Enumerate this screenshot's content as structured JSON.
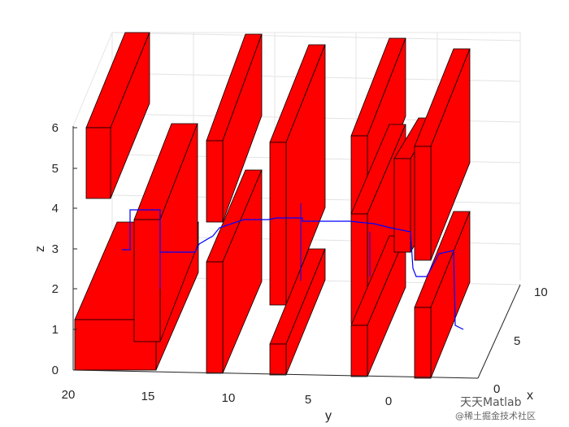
{
  "chart_data": {
    "type": "3d-bar-obstacles-with-path",
    "xlabel": "x",
    "ylabel": "y",
    "zlabel": "z",
    "z_ticks": [
      "0",
      "1",
      "2",
      "3",
      "4",
      "5",
      "6"
    ],
    "y_ticks": [
      "20",
      "15",
      "10",
      "5",
      "0"
    ],
    "x_ticks": [
      "0",
      "5",
      "10"
    ],
    "obstacle_color": "#ff0000",
    "path_color": "#0000ff",
    "grid": true
  },
  "watermark": {
    "line1": "天天Matlab",
    "line2": "@稀土掘金技术社区"
  }
}
